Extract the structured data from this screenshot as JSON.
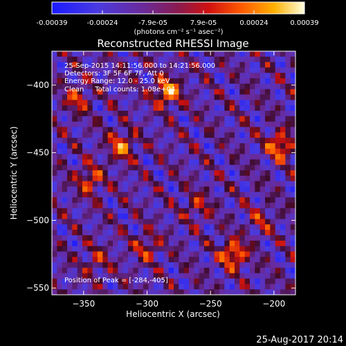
{
  "colorbar": {
    "ticks": [
      "-0.00039",
      "-0.00024",
      "-7.9e-05",
      "7.9e-05",
      "0.00024",
      "0.00039"
    ],
    "unit_label": "(photons cm⁻² s⁻¹ asec⁻²)",
    "range": [
      -0.00039,
      0.00039
    ],
    "colors": [
      "#1a1aff",
      "#5a3cc8",
      "#7a2a8a",
      "#c01010",
      "#ff5a00",
      "#ffb000",
      "#ffff80",
      "#ffffff"
    ]
  },
  "info": {
    "time": "25-Sep-2015 14:11:56.000 to 14:21:56.000",
    "detectors": "Detectors: 3F 5F 6F 7F, Att 0",
    "energy": "Energy Range: 12.0 - 25.0 keV",
    "clean": "Clean     Total counts: 1.08e+04",
    "peak": "Position of Peak = [-284,-405]"
  },
  "footer": {
    "date": "25-Aug-2017 20:14"
  },
  "chart_data": {
    "type": "heatmap",
    "title": "Reconstructed RHESSI Image",
    "xlabel": "Heliocentric X (arcsec)",
    "ylabel": "Heliocentric Y (arcsec)",
    "xlim": [
      -375,
      -183
    ],
    "ylim": [
      -555,
      -375
    ],
    "xticks": [
      -350,
      -300,
      -250,
      -200
    ],
    "yticks": [
      -400,
      -450,
      -500,
      -550
    ],
    "xtick_labels": [
      "−350",
      "−300",
      "−250",
      "−200"
    ],
    "ytick_labels": [
      "−400",
      "−450",
      "−500",
      "−550"
    ],
    "grid_cols": 48,
    "grid_rows": 45,
    "value_range": [
      -0.00039,
      0.00039
    ],
    "hot_spots": [
      {
        "x": -284,
        "y": -405,
        "value": 0.00039
      },
      {
        "x": -320,
        "y": -445,
        "value": 0.0003
      },
      {
        "x": -232,
        "y": -525,
        "value": 0.00036
      },
      {
        "x": -195,
        "y": -445,
        "value": 0.00034
      },
      {
        "x": -345,
        "y": -470,
        "value": 0.00026
      },
      {
        "x": -355,
        "y": -410,
        "value": 0.00022
      },
      {
        "x": -260,
        "y": -490,
        "value": 0.00018
      },
      {
        "x": -300,
        "y": -520,
        "value": 0.0002
      },
      {
        "x": -340,
        "y": -530,
        "value": 0.00016
      },
      {
        "x": -210,
        "y": -500,
        "value": 0.00014
      }
    ]
  }
}
